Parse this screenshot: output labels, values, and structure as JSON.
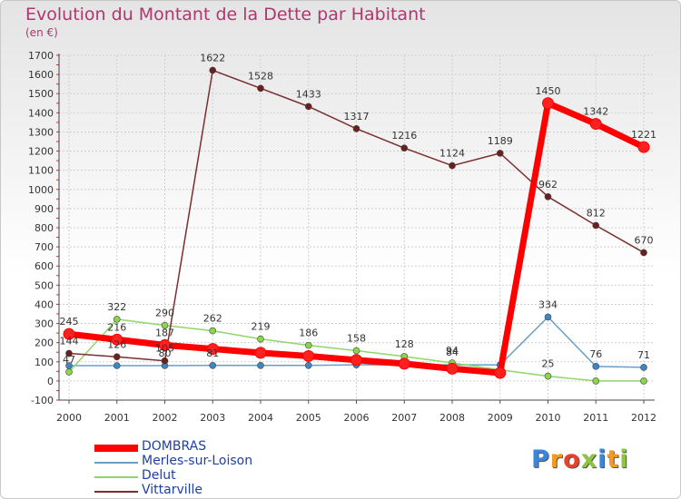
{
  "header": {
    "title": "Evolution du Montant de la Dette par Habitant",
    "subtitle": "(en €)"
  },
  "brand": {
    "logo_letters": [
      "P",
      "r",
      "o",
      "x",
      "i",
      "t",
      "i"
    ],
    "logo_colors": [
      "#3a86d8",
      "#f39a1f",
      "#e8432a",
      "#8ec63f",
      "#3a86d8",
      "#f39a1f",
      "#8ec63f"
    ]
  },
  "chart_data": {
    "type": "line",
    "title": "Evolution du Montant de la Dette par Habitant",
    "ylabel": "(en €)",
    "xlabel": "",
    "categories": [
      "2000",
      "2001",
      "2002",
      "2003",
      "2004",
      "2005",
      "2006",
      "2007",
      "2008",
      "2009",
      "2010",
      "2011",
      "2012"
    ],
    "y_ticks": [
      -100,
      0,
      100,
      200,
      300,
      400,
      500,
      600,
      700,
      800,
      900,
      1000,
      1100,
      1200,
      1300,
      1400,
      1500,
      1600,
      1700
    ],
    "ylim": [
      -100,
      1700
    ],
    "legend_position": "bottom-left",
    "series": [
      {
        "name": "DOMBRAS",
        "color": "#ff0000",
        "marker": "#ff2020",
        "values": [
          245,
          216,
          187,
          167,
          147,
          130,
          109,
          90,
          64,
          42,
          1450,
          1342,
          1221
        ],
        "labels": [
          "245",
          "216",
          "187",
          "",
          "",
          "",
          "",
          "",
          "",
          "",
          "1450",
          "1342",
          "1221"
        ]
      },
      {
        "name": "Merles-sur-Loison",
        "color": "#6a9ec8",
        "marker": "#3d86c6",
        "values": [
          80,
          80,
          80,
          81,
          81,
          81,
          84,
          84,
          84,
          84,
          334,
          76,
          71
        ],
        "labels": [
          "",
          "",
          "80",
          "81",
          "",
          "",
          "",
          "",
          "84",
          "",
          "334",
          "76",
          "71"
        ]
      },
      {
        "name": "Delut",
        "color": "#8fd66a",
        "marker": "#88d64a",
        "values": [
          47,
          322,
          290,
          262,
          219,
          186,
          158,
          128,
          94,
          58,
          25,
          0,
          0
        ],
        "labels": [
          "47",
          "322",
          "290",
          "262",
          "219",
          "186",
          "158",
          "128",
          "94",
          "",
          "25",
          "",
          ""
        ]
      },
      {
        "name": "Vittarville",
        "color": "#7a2e2e",
        "marker": "#6b1f1f",
        "values": [
          144,
          126,
          105,
          1622,
          1528,
          1433,
          1317,
          1216,
          1124,
          1189,
          962,
          812,
          670
        ],
        "labels": [
          "144",
          "126",
          "105",
          "1622",
          "1528",
          "1433",
          "1317",
          "1216",
          "1124",
          "1189",
          "962",
          "812",
          "670"
        ]
      }
    ]
  }
}
